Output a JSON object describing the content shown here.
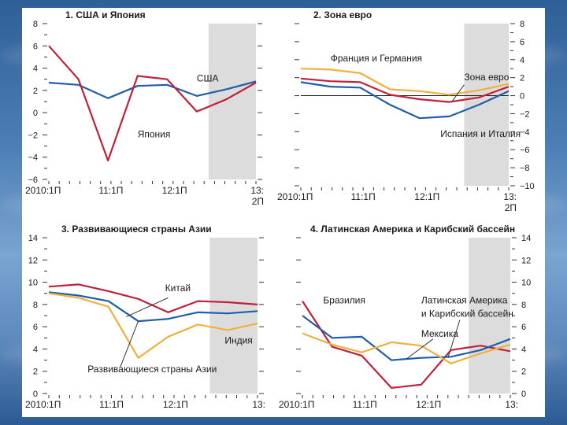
{
  "chart_data": [
    {
      "type": "line",
      "title": "1. США и Япония",
      "x_tick_labels": [
        "2010:1П",
        "11:1П",
        "12:1П",
        "13:",
        "2П"
      ],
      "ylim": [
        -6,
        8
      ],
      "y_ticks_left": [
        -6,
        -4,
        -2,
        0,
        2,
        4,
        6,
        8
      ],
      "y_ticks_right": [],
      "shade_from": 5.4,
      "x_range": [
        0,
        7
      ],
      "series": [
        {
          "name": "США",
          "color": "#1f5fa8",
          "x": [
            0,
            1,
            2,
            3,
            4,
            5,
            6,
            7
          ],
          "values": [
            2.7,
            2.5,
            1.3,
            2.4,
            2.5,
            1.5,
            2.1,
            2.8
          ]
        },
        {
          "name": "Япония",
          "color": "#c0203a",
          "x": [
            0,
            1,
            2,
            3,
            4,
            5,
            6,
            7
          ],
          "values": [
            6.0,
            3.0,
            -4.3,
            3.3,
            3.0,
            0.1,
            1.2,
            2.7
          ]
        }
      ],
      "labels": [
        {
          "text": "США",
          "x": 5.0,
          "y": 2.8
        },
        {
          "text": "Япония",
          "x": 3.0,
          "y": -2.2
        }
      ]
    },
    {
      "type": "line",
      "title": "2. Зона евро",
      "x_tick_labels": [
        "2010:1П",
        "11:1П",
        "12:1П",
        "13:",
        "2П"
      ],
      "ylim": [
        -10,
        8
      ],
      "y_ticks_left": [],
      "y_ticks_right": [
        8,
        6,
        4,
        2,
        0,
        -2,
        -4,
        -6,
        -8,
        -10
      ],
      "zero_line": true,
      "shade_from": 5.5,
      "x_range": [
        0,
        7
      ],
      "series": [
        {
          "name": "Франция и Германия",
          "color": "#f0b040",
          "x": [
            0,
            1,
            2,
            3,
            4,
            5,
            6,
            7
          ],
          "values": [
            3.0,
            2.9,
            2.5,
            0.7,
            0.5,
            0.1,
            0.6,
            1.3
          ]
        },
        {
          "name": "Зона евро",
          "color": "#c0203a",
          "x": [
            0,
            1,
            2,
            3,
            4,
            5,
            6,
            7
          ],
          "values": [
            1.9,
            1.6,
            1.5,
            0.1,
            -0.4,
            -0.7,
            -0.2,
            1.0
          ]
        },
        {
          "name": "Испания и Италия",
          "color": "#1f5fa8",
          "x": [
            0,
            1,
            2,
            3,
            4,
            5,
            6,
            7
          ],
          "values": [
            1.5,
            1.0,
            0.9,
            -1.0,
            -2.5,
            -2.3,
            -1.0,
            0.5
          ]
        }
      ],
      "labels": [
        {
          "text": "Франция и Германия",
          "x": 1.0,
          "y": 3.8
        },
        {
          "text": "Зона евро",
          "x": 5.5,
          "y": 1.7
        },
        {
          "text": "Испания и Италия",
          "x": 4.7,
          "y": -4.6
        }
      ]
    },
    {
      "type": "line",
      "title": "3. Развивающиеся страны Азии",
      "x_tick_labels": [
        "2010:1П",
        "11:1П",
        "12:1П",
        "13:"
      ],
      "ylim": [
        0,
        14
      ],
      "y_ticks_left": [
        0,
        2,
        4,
        6,
        8,
        10,
        12,
        14
      ],
      "y_ticks_right": [],
      "shade_from": 5.4,
      "x_range": [
        0,
        7
      ],
      "series": [
        {
          "name": "Китай",
          "color": "#c0203a",
          "x": [
            0,
            1,
            2,
            3,
            4,
            5,
            6,
            7
          ],
          "values": [
            9.6,
            9.8,
            9.2,
            8.5,
            7.3,
            8.3,
            8.2,
            8.0
          ]
        },
        {
          "name": "Развивающиеся страны Азии",
          "color": "#1f5fa8",
          "x": [
            0,
            1,
            2,
            3,
            4,
            5,
            6,
            7
          ],
          "values": [
            9.1,
            8.8,
            8.3,
            6.5,
            6.7,
            7.3,
            7.2,
            7.4
          ]
        },
        {
          "name": "Индия",
          "color": "#f0b040",
          "x": [
            0,
            1,
            2,
            3,
            4,
            5,
            6,
            7
          ],
          "values": [
            9.0,
            8.6,
            7.8,
            3.2,
            5.1,
            6.2,
            5.7,
            6.3
          ]
        }
      ],
      "labels": [
        {
          "text": "Китай",
          "x": 3.9,
          "y": 9.2
        },
        {
          "text": "Индия",
          "x": 5.9,
          "y": 4.5
        },
        {
          "text": "Развивающиеся страны Азии",
          "x": 1.3,
          "y": 1.9
        }
      ]
    },
    {
      "type": "line",
      "title": "4. Латинская Америка и Карибский бассейн",
      "x_tick_labels": [
        "2010:1П",
        "11:1П",
        "12:1П",
        "13:"
      ],
      "ylim": [
        0,
        14
      ],
      "y_ticks_left": [],
      "y_ticks_right": [
        14,
        12,
        10,
        8,
        6,
        4,
        2,
        0
      ],
      "shade_from": 5.6,
      "x_range": [
        0,
        7
      ],
      "series": [
        {
          "name": "Бразилия",
          "color": "#c0203a",
          "x": [
            0,
            1,
            2,
            3,
            4,
            5,
            6,
            7
          ],
          "values": [
            8.3,
            4.2,
            3.4,
            0.5,
            0.8,
            3.9,
            4.3,
            3.8
          ]
        },
        {
          "name": "Латинская Америка и Карибский бассейн",
          "color": "#1f5fa8",
          "x": [
            0,
            1,
            2,
            3,
            4,
            5,
            6,
            7
          ],
          "values": [
            7.0,
            5.0,
            5.1,
            3.0,
            3.2,
            3.3,
            3.9,
            4.9
          ]
        },
        {
          "name": "Мексика",
          "color": "#f0b040",
          "x": [
            0,
            1,
            2,
            3,
            4,
            5,
            6,
            7
          ],
          "values": [
            5.4,
            4.4,
            3.7,
            4.6,
            4.3,
            2.7,
            3.6,
            4.4
          ]
        }
      ],
      "labels": [
        {
          "text": "Бразилия",
          "x": 0.7,
          "y": 8.1
        },
        {
          "text": "Латинская Америка",
          "x": 4.0,
          "y": 8.1
        },
        {
          "text": "и Карибский бассейн",
          "x": 4.0,
          "y": 6.9
        },
        {
          "text": "Мексика",
          "x": 4.0,
          "y": 5.1
        }
      ]
    }
  ]
}
